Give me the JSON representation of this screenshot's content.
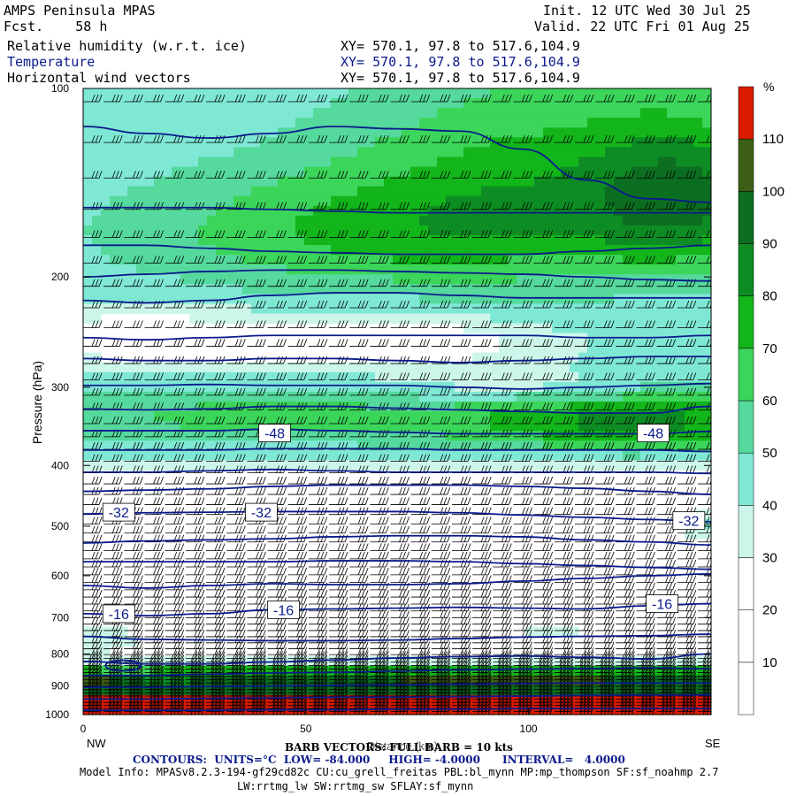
{
  "header": {
    "model": "AMPS Peninsula MPAS",
    "forecast": "Fcst.    58 h",
    "init": "Init. 12 UTC Wed 30 Jul 25",
    "valid": "Valid. 22 UTC Fri 01 Aug 25",
    "fields": [
      {
        "name": "Relative humidity (w.r.t. ice)",
        "xy": "XY= 570.1, 97.8 to 517.6,104.9",
        "color": "#000000"
      },
      {
        "name": "Temperature",
        "xy": "XY= 570.1, 97.8 to 517.6,104.9",
        "color": "#0a1a8c"
      },
      {
        "name": "Horizontal wind vectors",
        "xy": "XY= 570.1, 97.8 to 517.6,104.9",
        "color": "#000000"
      }
    ]
  },
  "chart_data": {
    "type": "heatmap",
    "title": "",
    "xlabel": "Distance (km)",
    "ylabel": "Pressure (hPa)",
    "xlim": [
      0,
      141
    ],
    "ylim": [
      1000,
      100
    ],
    "y_scale": "log",
    "xticks": [
      0,
      50,
      100
    ],
    "yticks": [
      100,
      200,
      300,
      400,
      500,
      600,
      700,
      800,
      900,
      1000
    ],
    "x_end_labels": {
      "left": "NW",
      "right": "SE"
    },
    "colorbar": {
      "unit": "%",
      "levels": [
        10,
        20,
        30,
        40,
        50,
        60,
        70,
        80,
        90,
        100,
        110
      ],
      "colors": [
        "#ffffff",
        "#ffffff",
        "#ffffff",
        "#ccf6ea",
        "#7fe8d4",
        "#55d99d",
        "#3bd55a",
        "#12b51a",
        "#0c8c23",
        "#0b6e21",
        "#3d5e14",
        "#d91a00"
      ]
    },
    "temperature_contours": {
      "units": "°C",
      "low": -84.0,
      "high": -4.0,
      "interval": 4.0,
      "labels": [
        {
          "value": "-48",
          "x": 43,
          "p": 355
        },
        {
          "value": "-48",
          "x": 128,
          "p": 355
        },
        {
          "value": "-32",
          "x": 8,
          "p": 475
        },
        {
          "value": "-32",
          "x": 40,
          "p": 475
        },
        {
          "value": "-32",
          "x": 136,
          "p": 490
        },
        {
          "value": "-16",
          "x": 8,
          "p": 690
        },
        {
          "value": "-16",
          "x": 45,
          "p": 680
        },
        {
          "value": "-16",
          "x": 130,
          "p": 665
        }
      ]
    },
    "barb_note": "BARB VECTORS: FULL BARB = 10 kts"
  },
  "footer": {
    "barb": "BARB VECTORS: FULL BARB = 10 kts",
    "contours": "CONTOURS:  UNITS=°C  LOW= -84.000     HIGH= -4.0000      INTERVAL=   4.0000",
    "model_info": "Model Info: MPASv8.2.3-194-gf29cd82c CU:cu_grell_freitas PBL:bl_mynn MP:mp_thompson SF:sf_noahmp 2.7",
    "physics": "LW:rrtmg_lw SW:rrtmg_sw SFLAY:sf_mynn"
  }
}
